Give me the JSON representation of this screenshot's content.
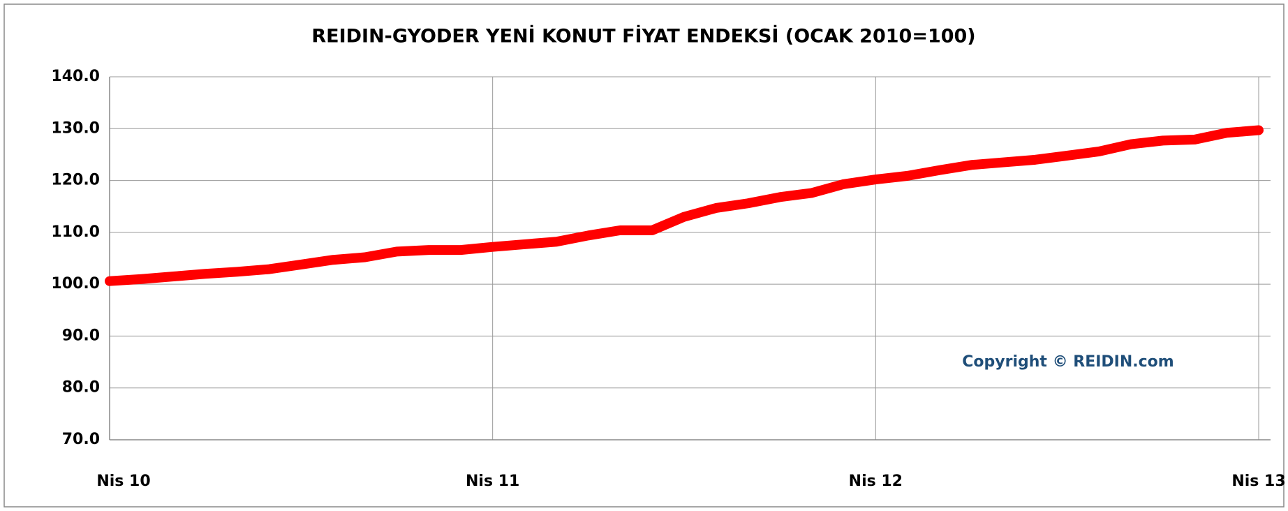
{
  "chart_data": {
    "type": "line",
    "title": "REIDIN-GYODER YENİ KONUT FİYAT ENDEKSİ (OCAK 2010=100)",
    "annotation": "Copyright © REIDIN.com",
    "categories": [
      "Nis 10",
      null,
      null,
      null,
      null,
      null,
      null,
      null,
      null,
      null,
      null,
      null,
      "Nis 11",
      null,
      null,
      null,
      null,
      null,
      null,
      null,
      null,
      null,
      null,
      null,
      "Nis 12",
      null,
      null,
      null,
      null,
      null,
      null,
      null,
      null,
      null,
      null,
      null,
      "Nis 13"
    ],
    "series": [
      {
        "color": "#ff0000",
        "values": [
          100.6,
          101.0,
          101.5,
          102.0,
          102.4,
          102.9,
          103.8,
          104.7,
          105.2,
          106.3,
          106.6,
          106.6,
          107.2,
          107.7,
          108.2,
          109.4,
          110.4,
          110.4,
          113.0,
          114.7,
          115.6,
          116.8,
          117.6,
          119.3,
          120.2,
          120.9,
          122.0,
          123.0,
          123.5,
          124.0,
          124.8,
          125.6,
          127.0,
          127.7,
          127.9,
          129.2,
          129.7
        ]
      }
    ],
    "ylim": [
      70,
      140
    ],
    "yticks": [
      {
        "value": 70,
        "label": "70.0"
      },
      {
        "value": 80,
        "label": "80.0"
      },
      {
        "value": 90,
        "label": "90.0"
      },
      {
        "value": 100,
        "label": "100.0"
      },
      {
        "value": 110,
        "label": "110.0"
      },
      {
        "value": 120,
        "label": "120.0"
      },
      {
        "value": 130,
        "label": "130.0"
      },
      {
        "value": 140,
        "label": "140.0"
      }
    ],
    "grid": true
  }
}
